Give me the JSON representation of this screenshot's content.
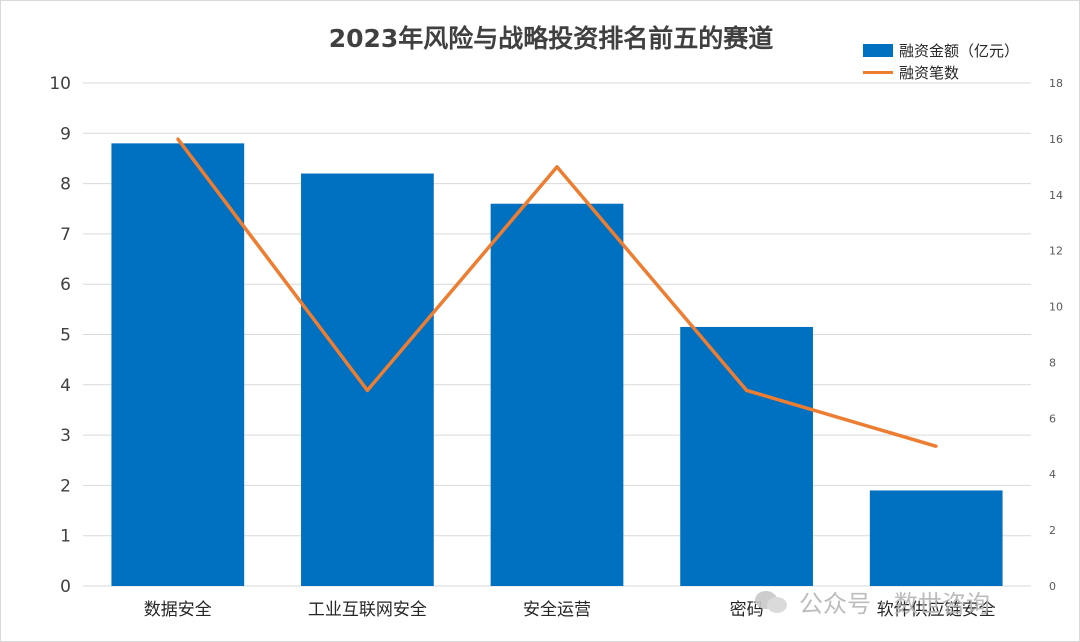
{
  "chart_data": {
    "type": "bar",
    "title": "2023年风险与战略投资排名前五的赛道",
    "categories": [
      "数据安全",
      "工业互联网安全",
      "安全运营",
      "密码",
      "软件供应链安全"
    ],
    "series": [
      {
        "name": "融资金额（亿元）",
        "type": "bar",
        "axis": "left",
        "values": [
          8.8,
          8.2,
          7.6,
          5.15,
          1.9
        ]
      },
      {
        "name": "融资笔数",
        "type": "line",
        "axis": "right",
        "values": [
          16,
          7,
          15,
          7,
          5
        ]
      }
    ],
    "ylim": [
      0,
      10
    ],
    "y2lim": [
      0,
      18
    ],
    "yticks": [
      0,
      1,
      2,
      3,
      4,
      5,
      6,
      7,
      8,
      9,
      10
    ],
    "y2ticks": [
      0,
      2,
      4,
      6,
      8,
      10,
      12,
      14,
      16,
      18
    ],
    "grid": true,
    "legend": "top-right",
    "colors": {
      "bar": "#0070c0",
      "line": "#ed7d31",
      "grid": "#d9d9d9",
      "text": "#595959"
    }
  },
  "watermark": {
    "text": "公众号 · 数世咨询",
    "icon": "wechat-icon"
  }
}
